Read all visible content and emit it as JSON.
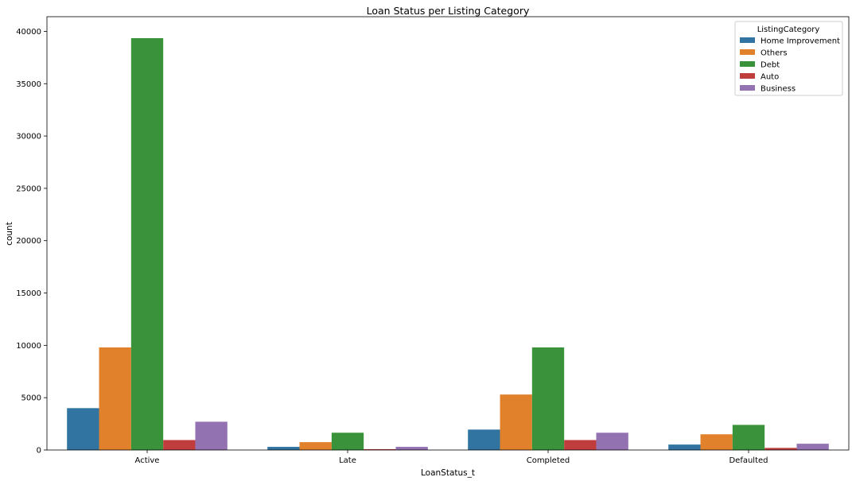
{
  "chart_data": {
    "type": "bar",
    "title": "Loan Status per Listing Category",
    "xlabel": "LoanStatus_t",
    "ylabel": "count",
    "ylim": [
      0,
      41400
    ],
    "yticks": [
      0,
      5000,
      10000,
      15000,
      20000,
      25000,
      30000,
      35000,
      40000
    ],
    "grid": false,
    "legend": {
      "title": "ListingCategory",
      "position": "top-right"
    },
    "categories": [
      "Active",
      "Late",
      "Completed",
      "Defaulted"
    ],
    "series": [
      {
        "name": "Home Improvement",
        "color": "#3274a1",
        "values": [
          4000,
          300,
          1950,
          520
        ]
      },
      {
        "name": "Others",
        "color": "#e1812c",
        "values": [
          9800,
          750,
          5300,
          1500
        ]
      },
      {
        "name": "Debt",
        "color": "#3a923a",
        "values": [
          39350,
          1650,
          9800,
          2400
        ]
      },
      {
        "name": "Auto",
        "color": "#c03d3e",
        "values": [
          950,
          80,
          950,
          200
        ]
      },
      {
        "name": "Business",
        "color": "#9372b2",
        "values": [
          2700,
          300,
          1650,
          600
        ]
      }
    ]
  }
}
